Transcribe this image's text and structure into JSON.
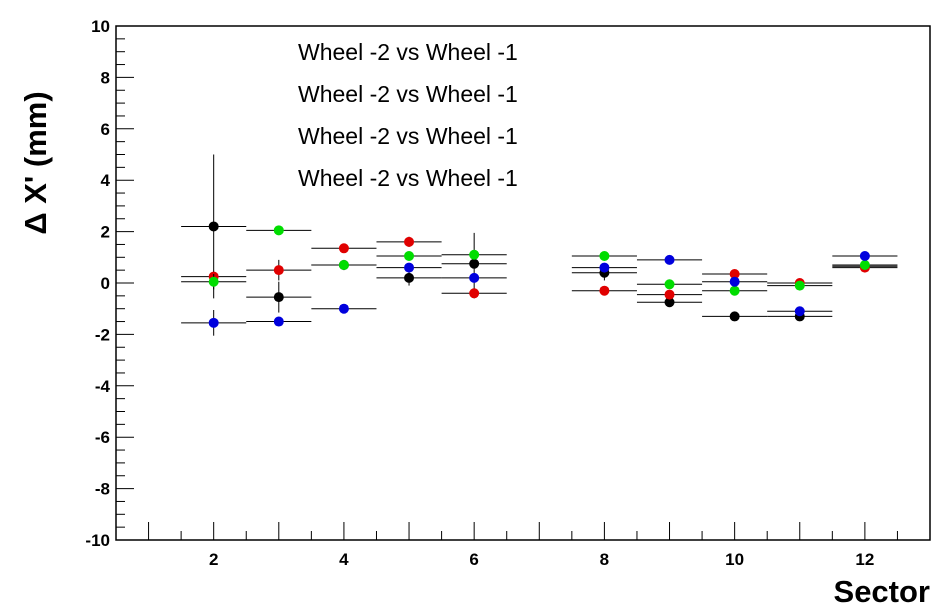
{
  "chart_data": {
    "type": "scatter",
    "xlabel": "Sector",
    "ylabel": "Δ X' (mm)",
    "xlim": [
      0.5,
      13
    ],
    "ylim": [
      -10,
      10
    ],
    "x_ticks": [
      2,
      4,
      6,
      8,
      10,
      12
    ],
    "y_ticks": [
      -10,
      -8,
      -6,
      -4,
      -2,
      0,
      2,
      4,
      6,
      8,
      10
    ],
    "legend": {
      "position": "top-left",
      "entries": [
        "Wheel -2 vs Wheel -1",
        "Wheel -2 vs Wheel -1",
        "Wheel -2 vs Wheel -1",
        "Wheel -2 vs Wheel -1"
      ]
    },
    "series": [
      {
        "color": "#000000",
        "x": [
          2,
          3,
          4,
          5,
          6,
          8,
          9,
          10,
          11,
          12
        ],
        "y": [
          2.2,
          -0.55,
          0.7,
          0.2,
          0.75,
          0.4,
          -0.75,
          -1.3,
          -1.3,
          0.65
        ],
        "yerr": [
          2.8,
          0.6,
          0.2,
          0.3,
          1.2,
          0.3,
          0.15,
          0.1,
          0.1,
          0.15
        ],
        "xerr": 0.5
      },
      {
        "color": "#e00000",
        "x": [
          2,
          3,
          4,
          5,
          6,
          8,
          9,
          10,
          11,
          12
        ],
        "y": [
          0.25,
          0.5,
          1.35,
          1.6,
          -0.4,
          -0.3,
          -0.45,
          0.35,
          0.0,
          0.6
        ],
        "yerr": [
          0.2,
          0.4,
          0.1,
          0.2,
          0.2,
          0.1,
          0.1,
          0.1,
          0.1,
          0.1
        ],
        "xerr": 0.5
      },
      {
        "color": "#00dd00",
        "x": [
          2,
          3,
          4,
          5,
          6,
          8,
          9,
          10,
          11,
          12
        ],
        "y": [
          0.05,
          2.05,
          0.7,
          1.05,
          1.1,
          1.05,
          -0.05,
          -0.3,
          -0.1,
          0.7
        ],
        "yerr": [
          0.3,
          0.1,
          0.1,
          0.1,
          0.1,
          0.1,
          0.1,
          0.1,
          0.1,
          0.1
        ],
        "xerr": 0.5
      },
      {
        "color": "#0000dd",
        "x": [
          2,
          3,
          4,
          5,
          6,
          8,
          9,
          10,
          11,
          12
        ],
        "y": [
          -1.55,
          -1.5,
          -1.0,
          0.6,
          0.2,
          0.6,
          0.9,
          0.05,
          -1.1,
          1.05
        ],
        "yerr": [
          0.5,
          0.1,
          0.1,
          0.1,
          0.1,
          0.1,
          0.1,
          0.1,
          0.1,
          0.1
        ],
        "xerr": 0.5
      }
    ]
  }
}
